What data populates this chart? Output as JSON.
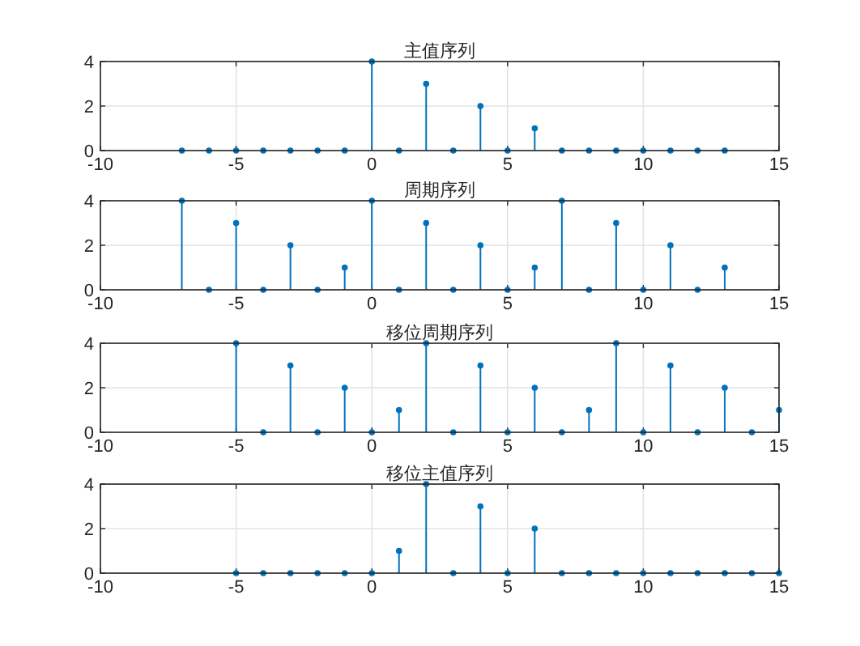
{
  "chart_data": [
    {
      "type": "lollipop",
      "title": "主值序列",
      "x": [
        -7,
        -6,
        -5,
        -4,
        -3,
        -2,
        -1,
        0,
        1,
        2,
        3,
        4,
        5,
        6,
        7,
        8,
        9,
        10,
        11,
        12,
        13
      ],
      "values": [
        0,
        0,
        0,
        0,
        0,
        0,
        0,
        4,
        0,
        3,
        0,
        2,
        0,
        1,
        0,
        0,
        0,
        0,
        0,
        0,
        0
      ],
      "color": "#0072bd",
      "marker": "circle",
      "grid": true,
      "xlim": [
        -10,
        15
      ],
      "ylim": [
        0,
        4
      ],
      "xticks": [
        -10,
        -5,
        0,
        5,
        10,
        15
      ],
      "yticks": [
        0,
        2,
        4
      ]
    },
    {
      "type": "lollipop",
      "title": "周期序列",
      "x": [
        -7,
        -6,
        -5,
        -4,
        -3,
        -2,
        -1,
        0,
        1,
        2,
        3,
        4,
        5,
        6,
        7,
        8,
        9,
        10,
        11,
        12,
        13
      ],
      "values": [
        4,
        0,
        3,
        0,
        2,
        0,
        1,
        4,
        0,
        3,
        0,
        2,
        0,
        1,
        4,
        0,
        3,
        0,
        2,
        0,
        1
      ],
      "color": "#0072bd",
      "marker": "circle",
      "grid": true,
      "xlim": [
        -10,
        15
      ],
      "ylim": [
        0,
        4
      ],
      "xticks": [
        -10,
        -5,
        0,
        5,
        10,
        15
      ],
      "yticks": [
        0,
        2,
        4
      ]
    },
    {
      "type": "lollipop",
      "title": "移位周期序列",
      "x": [
        -5,
        -4,
        -3,
        -2,
        -1,
        0,
        1,
        2,
        3,
        4,
        5,
        6,
        7,
        8,
        9,
        10,
        11,
        12,
        13,
        14,
        15
      ],
      "values": [
        4,
        0,
        3,
        0,
        2,
        0,
        1,
        4,
        0,
        3,
        0,
        2,
        0,
        1,
        4,
        0,
        3,
        0,
        2,
        0,
        1
      ],
      "color": "#0072bd",
      "marker": "circle",
      "grid": true,
      "xlim": [
        -10,
        15
      ],
      "ylim": [
        0,
        4
      ],
      "xticks": [
        -10,
        -5,
        0,
        5,
        10,
        15
      ],
      "yticks": [
        0,
        2,
        4
      ]
    },
    {
      "type": "lollipop",
      "title": "移位主值序列",
      "x": [
        -5,
        -4,
        -3,
        -2,
        -1,
        0,
        1,
        2,
        3,
        4,
        5,
        6,
        7,
        8,
        9,
        10,
        11,
        12,
        13,
        14,
        15
      ],
      "values": [
        0,
        0,
        0,
        0,
        0,
        0,
        1,
        4,
        0,
        3,
        0,
        2,
        0,
        0,
        0,
        0,
        0,
        0,
        0,
        0,
        0
      ],
      "color": "#0072bd",
      "marker": "circle",
      "grid": true,
      "xlim": [
        -10,
        15
      ],
      "ylim": [
        0,
        4
      ],
      "xticks": [
        -10,
        -5,
        0,
        5,
        10,
        15
      ],
      "yticks": [
        0,
        2,
        4
      ]
    }
  ]
}
